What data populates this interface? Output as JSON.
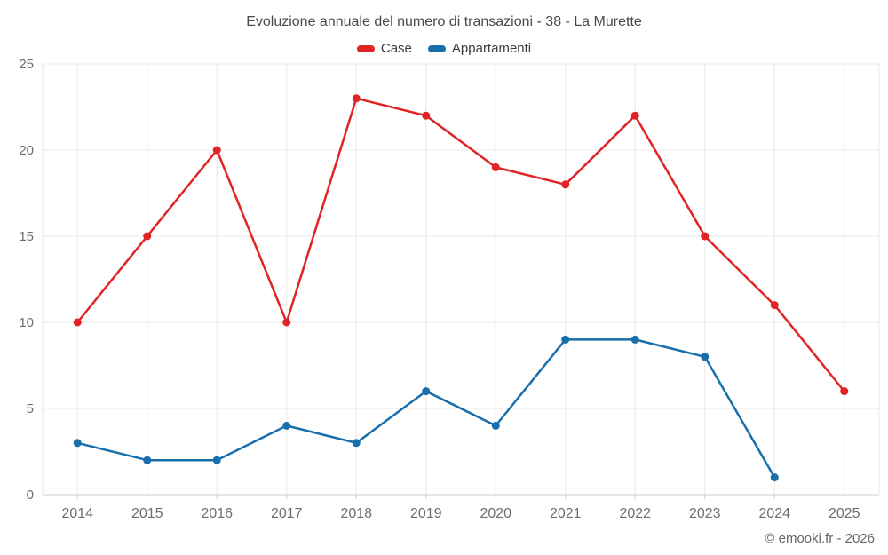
{
  "title": "Evoluzione annuale del numero di transazioni - 38 - La Murette",
  "footer": {
    "copyright": "© emooki.fr - 2026"
  },
  "colors": {
    "background": "#ffffff",
    "title_text": "#4a4a4a",
    "legend_text": "#3c3c3c",
    "tick_label": "#6e6e6e",
    "gridline": "#e8e8e8",
    "axis_line": "#cccccc",
    "series_case": "#e02425",
    "series_appartamenti": "#186fab"
  },
  "chart_data": {
    "type": "line",
    "title": "Evoluzione annuale del numero di transazioni - 38 - La Murette",
    "categories": [
      "2014",
      "2015",
      "2016",
      "2017",
      "2018",
      "2019",
      "2020",
      "2021",
      "2022",
      "2023",
      "2024",
      "2025"
    ],
    "series": [
      {
        "name": "Case",
        "color": "#e02425",
        "values": [
          10,
          15,
          20,
          10,
          23,
          22,
          19,
          18,
          22,
          15,
          11,
          6
        ]
      },
      {
        "name": "Appartamenti",
        "color": "#186fab",
        "values": [
          3,
          2,
          2,
          4,
          3,
          6,
          4,
          9,
          9,
          8,
          1,
          null
        ]
      }
    ],
    "xlabel": "",
    "ylabel": "",
    "ylim": [
      0,
      25
    ],
    "yticks": [
      0,
      5,
      10,
      15,
      20,
      25
    ],
    "grid": true,
    "legend_position": "top",
    "marker": "circle"
  }
}
